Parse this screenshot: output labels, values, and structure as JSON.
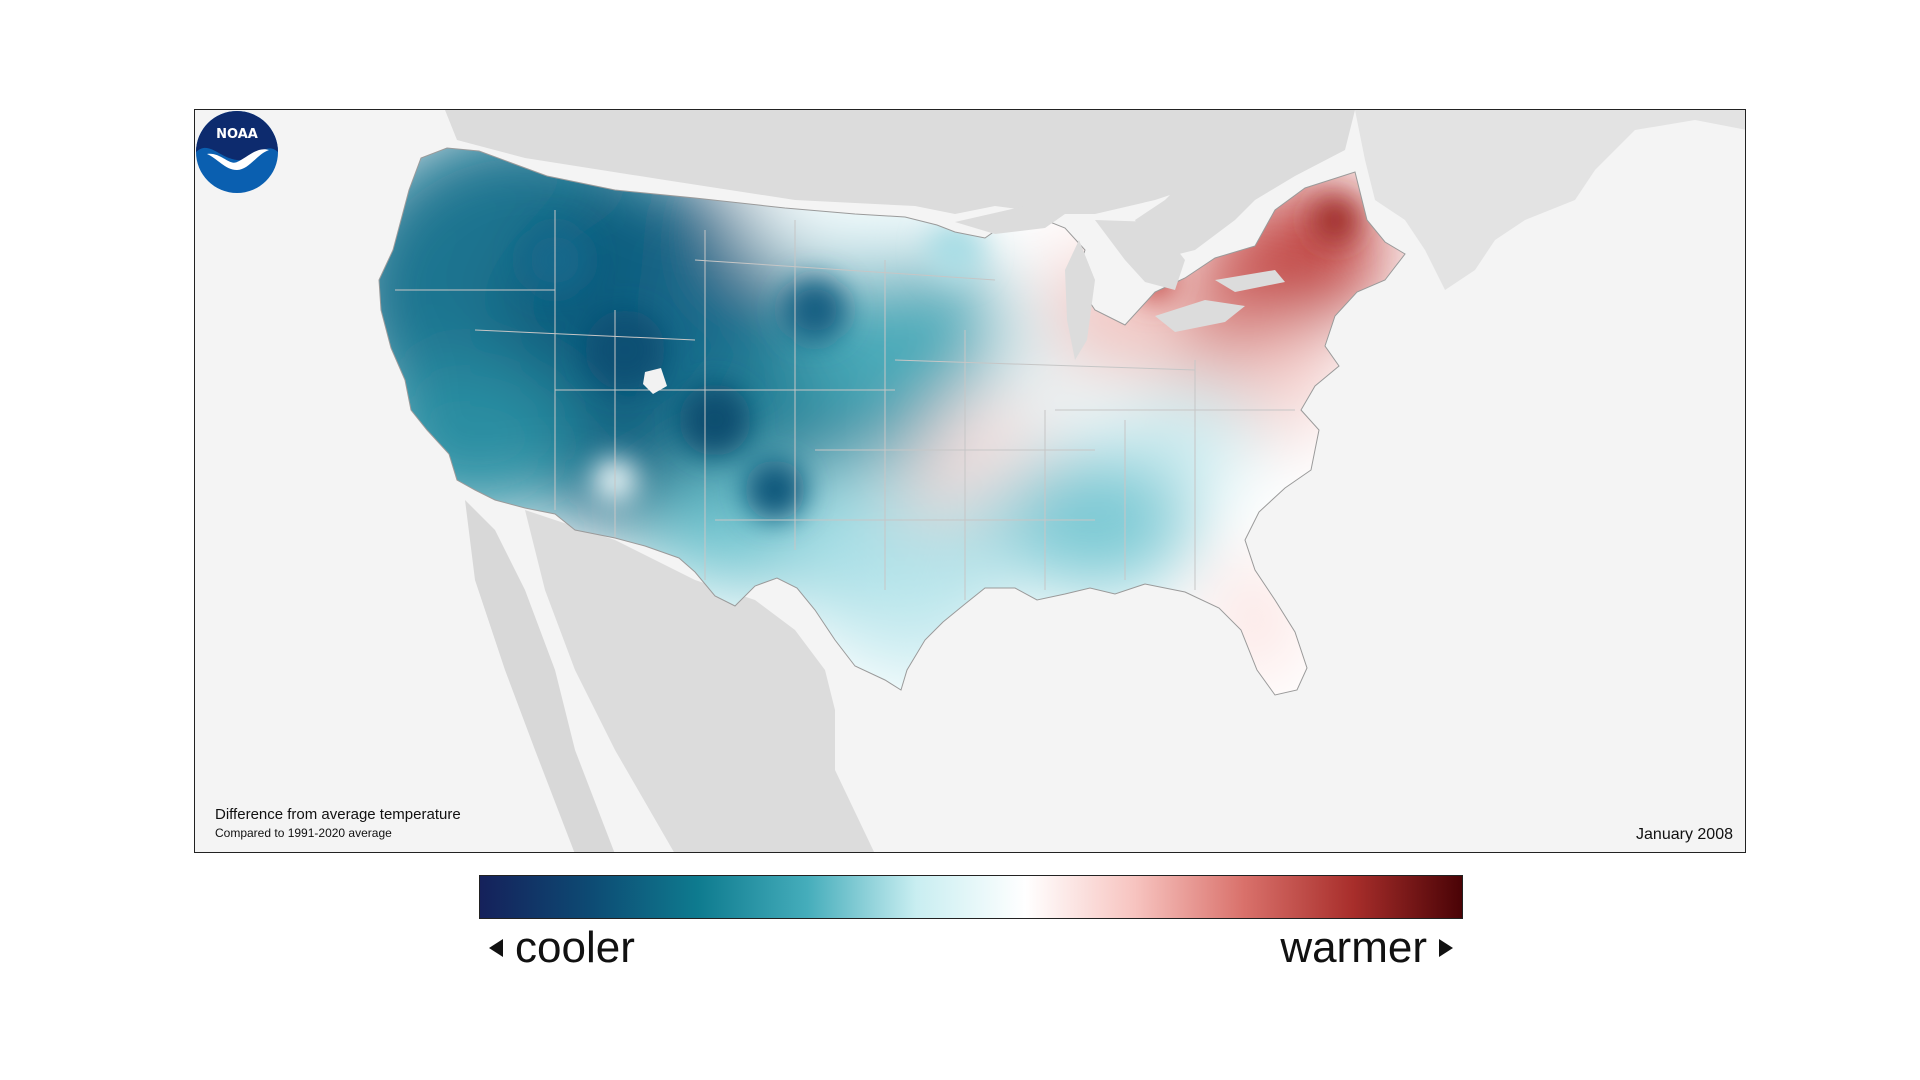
{
  "map": {
    "caption_title": "Difference from average temperature",
    "caption_subtitle": "Compared to 1991-2020 average",
    "date": "January 2008",
    "logo_text": "NOAA"
  },
  "legend": {
    "left_label": "cooler",
    "right_label": "warmer",
    "colors": [
      "#15215b",
      "#0d4a73",
      "#0e7b8f",
      "#45adbb",
      "#c9eef1",
      "#ffffff",
      "#f7c4c0",
      "#d9716b",
      "#a82e2b",
      "#4a0306"
    ]
  },
  "colors": {
    "land_background": "#f4f4f4",
    "neighbor_land": "#dcdcdc",
    "conus_fill": "#ffffff"
  }
}
